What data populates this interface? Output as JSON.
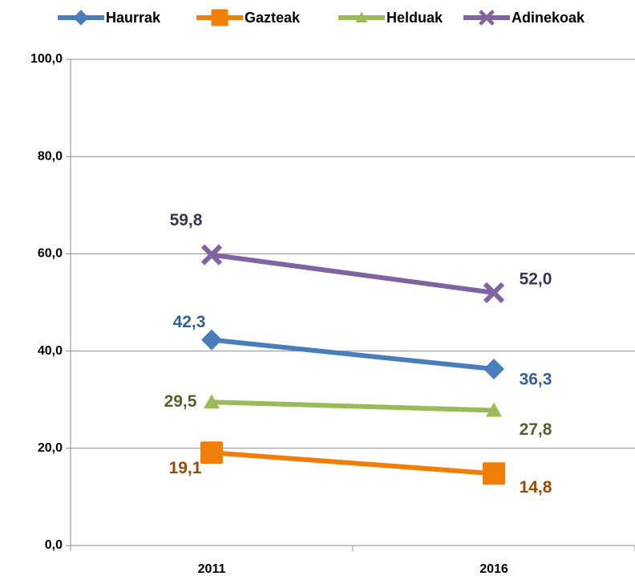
{
  "chart_data": {
    "type": "line",
    "categories": [
      "2011",
      "2016"
    ],
    "series": [
      {
        "name": "Haurrak",
        "color": "#4a7ebb",
        "label_color": "#376092",
        "marker": "diamond",
        "values": [
          42.3,
          36.3
        ],
        "value_labels": [
          "42,3",
          "36,3"
        ]
      },
      {
        "name": "Gazteak",
        "color": "#f07f09",
        "label_color": "#984807",
        "marker": "square",
        "values": [
          19.1,
          14.8
        ],
        "value_labels": [
          "19,1",
          "14,8"
        ]
      },
      {
        "name": "Helduak",
        "color": "#9bbb59",
        "label_color": "#4f6228",
        "marker": "triangle",
        "values": [
          29.5,
          27.8
        ],
        "value_labels": [
          "29,5",
          "27,8"
        ]
      },
      {
        "name": "Adinekoak",
        "color": "#8064a2",
        "label_color": "#3f3151",
        "marker": "x",
        "values": [
          59.8,
          52.0
        ],
        "value_labels": [
          "59,8",
          "52,0"
        ]
      }
    ],
    "ylim": [
      0,
      100
    ],
    "yticks": [
      {
        "value": 0,
        "label": "0,0"
      },
      {
        "value": 20,
        "label": "20,0"
      },
      {
        "value": 40,
        "label": "40,0"
      },
      {
        "value": 60,
        "label": "60,0"
      },
      {
        "value": 80,
        "label": "80,0"
      },
      {
        "value": 100,
        "label": "100,0"
      }
    ],
    "grid": true,
    "legend": "top"
  }
}
